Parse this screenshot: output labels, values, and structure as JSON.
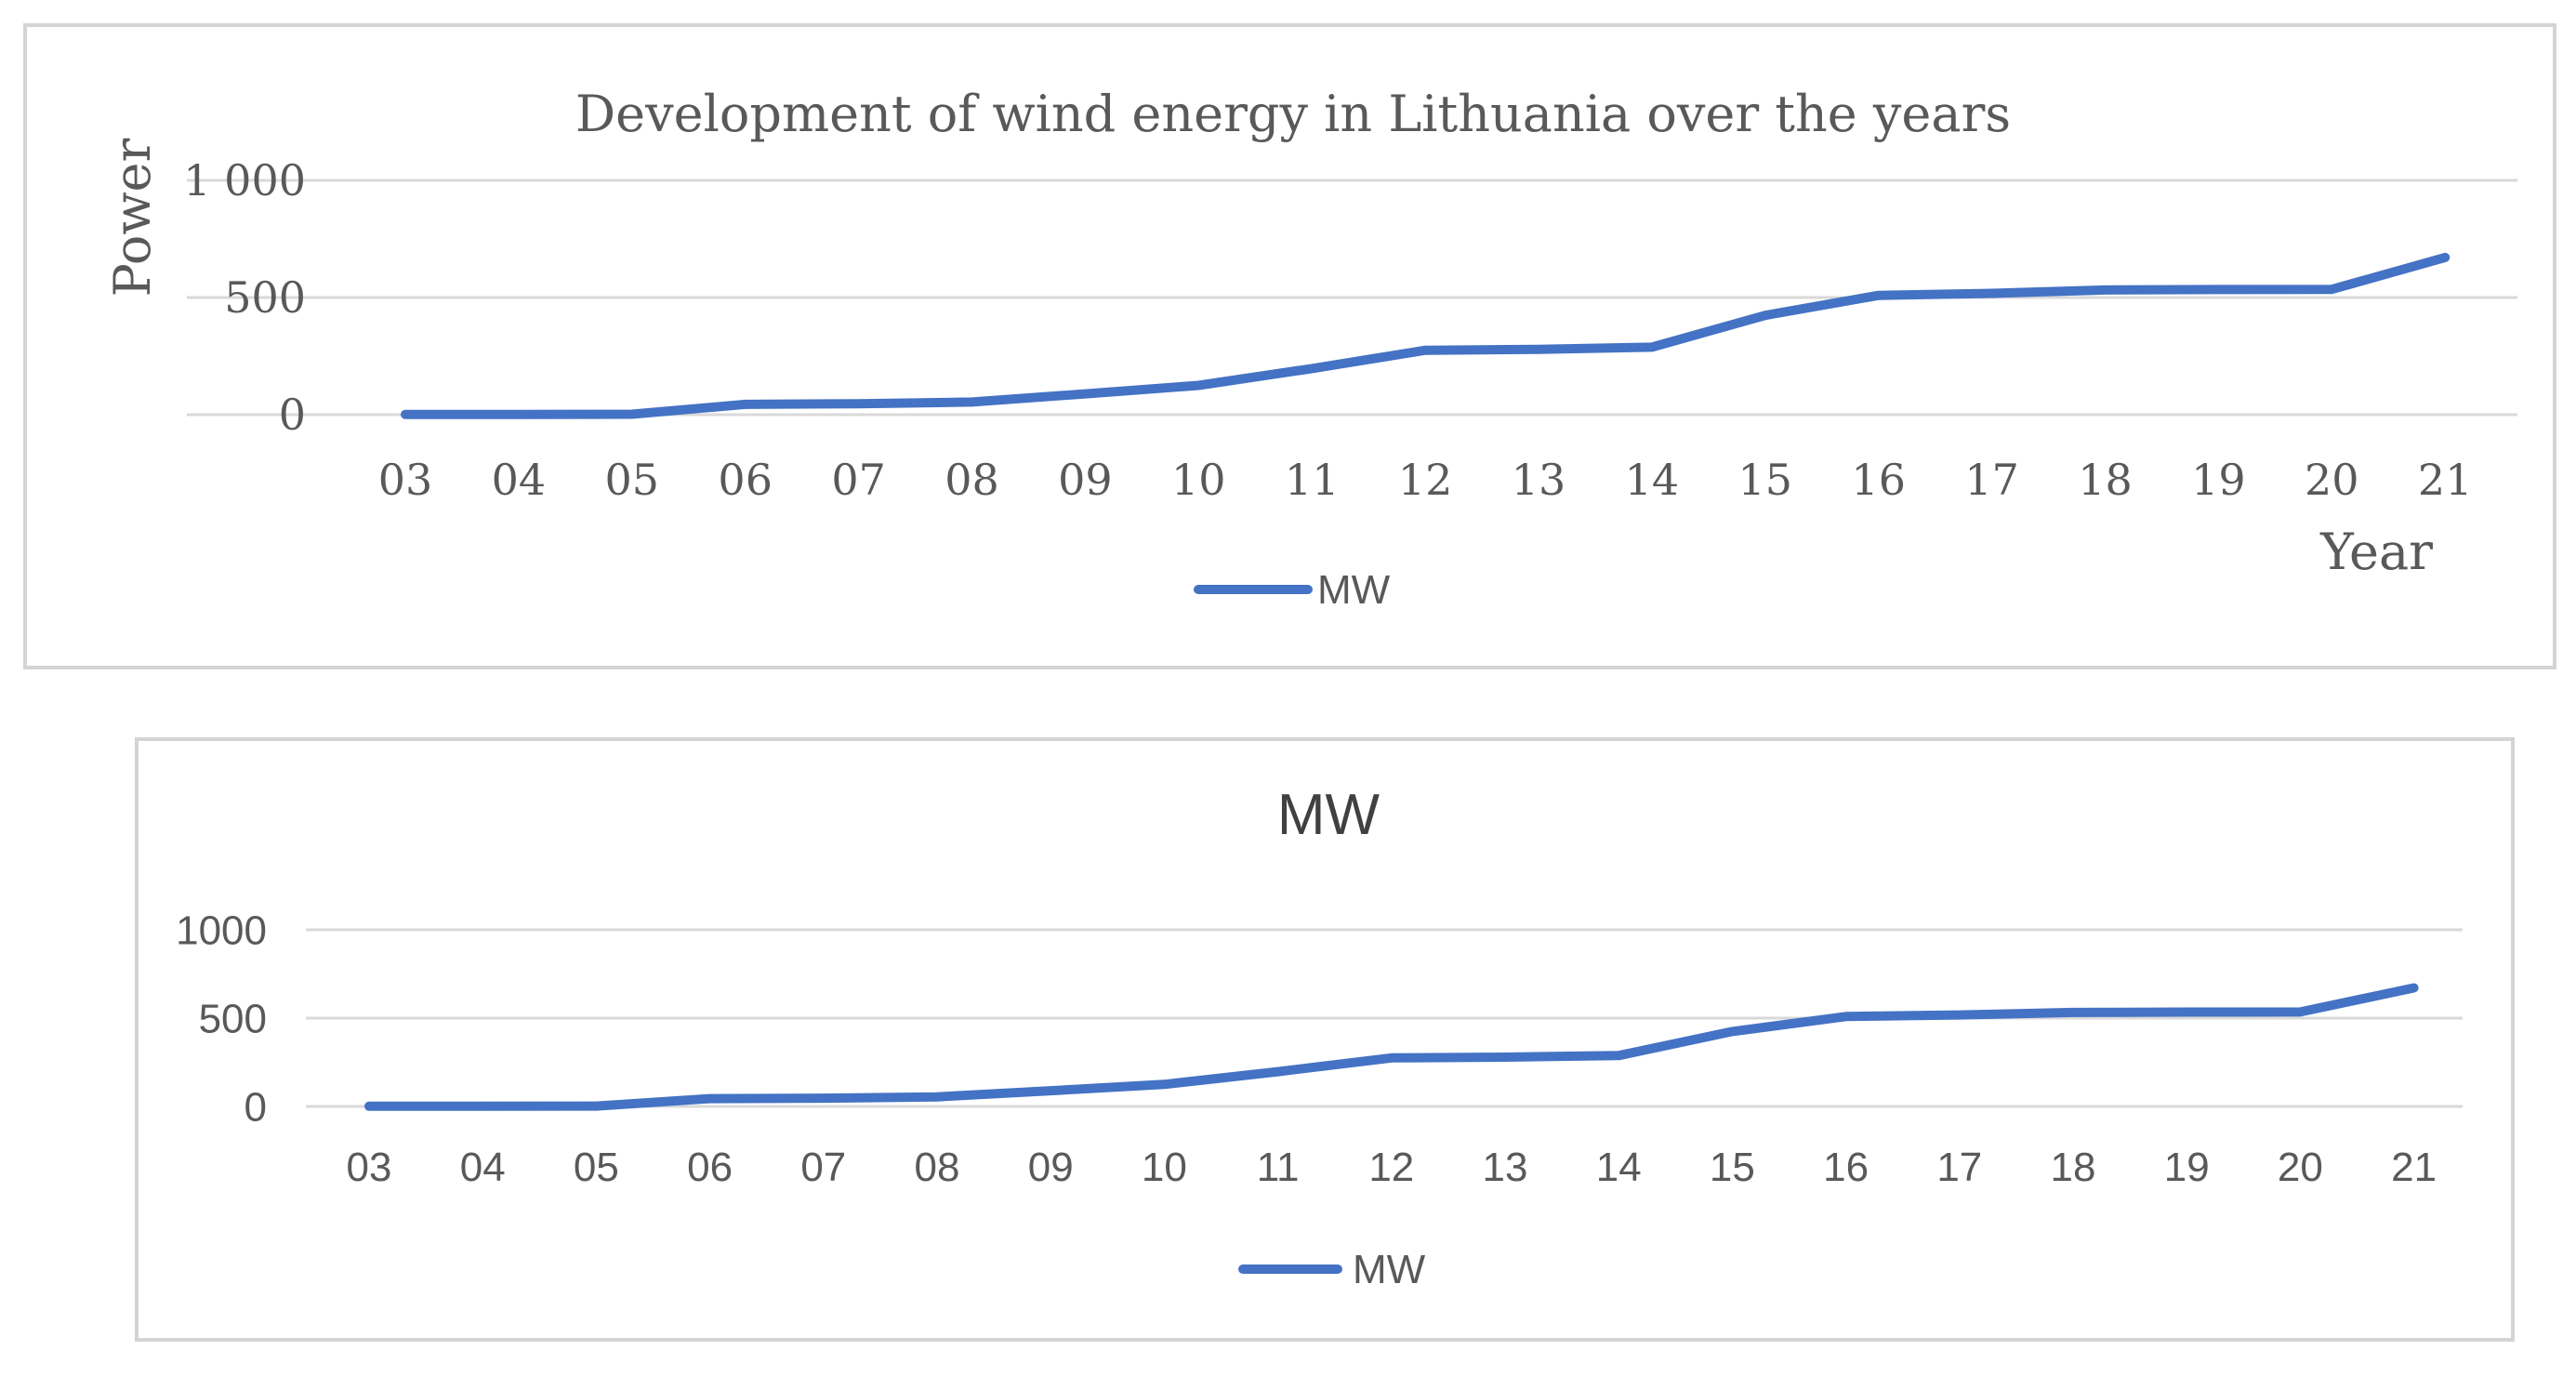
{
  "series_color": "#4472c4",
  "chart_data": [
    {
      "type": "line",
      "title": "Development of wind energy in Lithuania over the years",
      "xlabel": "Year",
      "ylabel": "Power",
      "categories": [
        "03",
        "04",
        "05",
        "06",
        "07",
        "08",
        "09",
        "10",
        "11",
        "12",
        "13",
        "14",
        "15",
        "16",
        "17",
        "18",
        "19",
        "20",
        "21"
      ],
      "series": [
        {
          "name": "MW",
          "values": [
            1,
            1,
            2,
            44,
            47,
            54,
            89,
            125,
            197,
            275,
            279,
            288,
            424,
            509,
            518,
            532,
            534,
            535,
            671
          ]
        }
      ],
      "yticks": [
        "0",
        "500",
        "1 000"
      ],
      "ylim": [
        0,
        1000
      ],
      "grid": true,
      "legend": "bottom"
    },
    {
      "type": "line",
      "title": "MW",
      "xlabel": "",
      "ylabel": "",
      "categories": [
        "03",
        "04",
        "05",
        "06",
        "07",
        "08",
        "09",
        "10",
        "11",
        "12",
        "13",
        "14",
        "15",
        "16",
        "17",
        "18",
        "19",
        "20",
        "21"
      ],
      "series": [
        {
          "name": "MW",
          "values": [
            1,
            1,
            2,
            44,
            47,
            54,
            89,
            125,
            197,
            275,
            279,
            288,
            424,
            509,
            518,
            532,
            534,
            535,
            671
          ]
        }
      ],
      "yticks": [
        "0",
        "500",
        "1000"
      ],
      "ylim": [
        0,
        1000
      ],
      "grid": true,
      "legend": "bottom"
    }
  ]
}
